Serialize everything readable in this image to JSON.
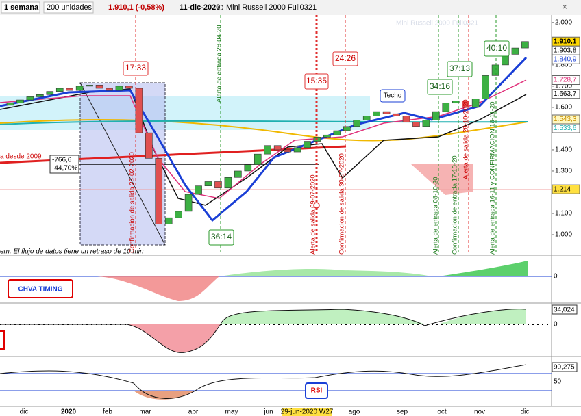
{
  "toolbar": {
    "period": "1 semana",
    "units": "200 unidades",
    "last": "1.910,1 (-0,58%)",
    "date": "11-dic-2020",
    "instrument": "Mini Russell 2000 Full0321"
  },
  "chart_data": {
    "type": "candlestick",
    "title": "Mini Russell 2000 Full0321",
    "open": [
      1610,
      1620,
      1635,
      1650,
      1660,
      1675,
      1690,
      1680,
      1700,
      1705,
      1690,
      1680,
      1700,
      1690,
      1480,
      1360,
      1050,
      1080,
      1110,
      1190,
      1230,
      1250,
      1220,
      1270,
      1300,
      1330,
      1380,
      1420,
      1400,
      1390,
      1410,
      1440,
      1460,
      1470,
      1490,
      1510,
      1540,
      1560,
      1580,
      1570,
      1560,
      1530,
      1510,
      1540,
      1580,
      1620,
      1630,
      1600,
      1640,
      1750,
      1800,
      1850,
      1880
    ],
    "close": [
      1620,
      1635,
      1650,
      1660,
      1675,
      1690,
      1680,
      1700,
      1705,
      1690,
      1680,
      1700,
      1690,
      1480,
      1360,
      1050,
      1080,
      1110,
      1190,
      1230,
      1250,
      1220,
      1270,
      1300,
      1330,
      1380,
      1420,
      1400,
      1390,
      1410,
      1440,
      1460,
      1470,
      1490,
      1510,
      1540,
      1560,
      1580,
      1570,
      1560,
      1530,
      1510,
      1540,
      1580,
      1620,
      1630,
      1600,
      1640,
      1750,
      1800,
      1850,
      1880,
      1910
    ],
    "up_color": "#3cb043",
    "down_color": "#e05050",
    "ylim": [
      913,
      2035
    ],
    "yticks": [
      {
        "value": 1000,
        "label": "1.000"
      },
      {
        "value": 1100,
        "label": "1.100"
      },
      {
        "value": 1300,
        "label": "1.300"
      },
      {
        "value": 1400,
        "label": "1.400"
      },
      {
        "value": 1600,
        "label": "1.600"
      },
      {
        "value": 1700,
        "label": "1.700"
      },
      {
        "value": 1800,
        "label": "1.800"
      },
      {
        "value": 2000,
        "label": "2.000"
      }
    ],
    "price_badges": [
      {
        "value": 1910.1,
        "label": "1.910,1",
        "color": "#000000",
        "bg": "#ffd700"
      },
      {
        "value": 1903.8,
        "label": "1.903,8",
        "color": "#000000",
        "bg": "#ffffff"
      },
      {
        "value": 1840.9,
        "label": "1.840,9",
        "color": "#1a3fd6",
        "bg": "#ffffff"
      },
      {
        "value": 1728.7,
        "label": "1.728,7",
        "color": "#e0307a",
        "bg": "#ffffff"
      },
      {
        "value": 1663.7,
        "label": "1.663,7",
        "color": "#000000",
        "bg": "#ffffff"
      },
      {
        "value": 1543.3,
        "label": "1.543,3",
        "color": "#c89000",
        "bg": "#fff8c0"
      },
      {
        "value": 1533.6,
        "label": "1.533,6",
        "color": "#20b0b0",
        "bg": "#ffffff"
      },
      {
        "value": 1214,
        "label": "1.214",
        "color": "#000000",
        "bg": "#ffe040"
      }
    ],
    "x_labels": [
      "dic",
      "2020",
      "feb",
      "mar",
      "abr",
      "may",
      "jun",
      "29-jun-2020 W27",
      "ago",
      "sep",
      "oct",
      "nov",
      "dic"
    ]
  },
  "annotations": {
    "boxes": [
      "17:33",
      "15:35",
      "24:26",
      "34:16",
      "37:13",
      "40:10",
      "36:14"
    ],
    "techo": "Techo",
    "trend": "a desde 2009",
    "drop_points": "-766,6",
    "drop_pct": "-44,70%",
    "delay": "em. El flujo de datos tiene un retraso de 10 min",
    "vertical": [
      "Alerta de entrada 28-04-20",
      "Confirmacion de salida 25-02-2020",
      "Alerta de salida 09-07-2020",
      "Confirmacion de salida 30-07-2020",
      "Alerta de entrada 08-10-20",
      "Confirmacion de entrada 17-10-20",
      "Alerta de salida 28-10-2020",
      "Alerta de entrada 16-11 y CONFIRMACION 18-11-20"
    ]
  },
  "panels": {
    "chva": {
      "title": "CHVA TIMING",
      "zero": "0"
    },
    "osc": {
      "last": "34,024",
      "zero": "0"
    },
    "rsi": {
      "title": "RSI",
      "last": "90,275",
      "mid": "50"
    }
  }
}
